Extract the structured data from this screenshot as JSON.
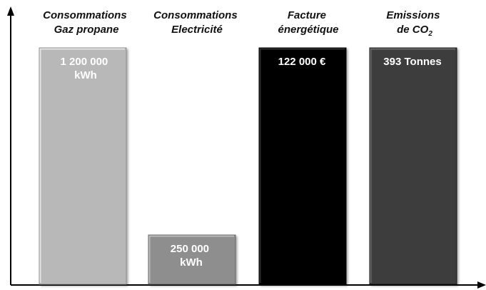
{
  "chart_data": {
    "type": "bar",
    "title": "",
    "xlabel": "",
    "ylabel": "",
    "grid": false,
    "legend": "none",
    "categories": [
      {
        "lines": [
          "Consommations",
          "Gaz propane"
        ],
        "sub": ""
      },
      {
        "lines": [
          "Consommations",
          "Electricité"
        ],
        "sub": ""
      },
      {
        "lines": [
          "Facture",
          "énergétique"
        ],
        "sub": ""
      },
      {
        "lines": [
          "Emissions",
          "de CO"
        ],
        "sub": "2"
      }
    ],
    "bars": [
      {
        "value": 1.0,
        "label_lines": [
          "1 200 000",
          "kWh"
        ],
        "color": "#b8b8b8"
      },
      {
        "value": 0.2083,
        "label_lines": [
          "250 000",
          "kWh"
        ],
        "color": "#8e8e8e"
      },
      {
        "value": 1.0,
        "label_lines": [
          "122 000 €"
        ],
        "color": "#000000"
      },
      {
        "value": 1.0,
        "label_lines": [
          "393 Tonnes"
        ],
        "color": "#3c3c3c"
      }
    ]
  }
}
